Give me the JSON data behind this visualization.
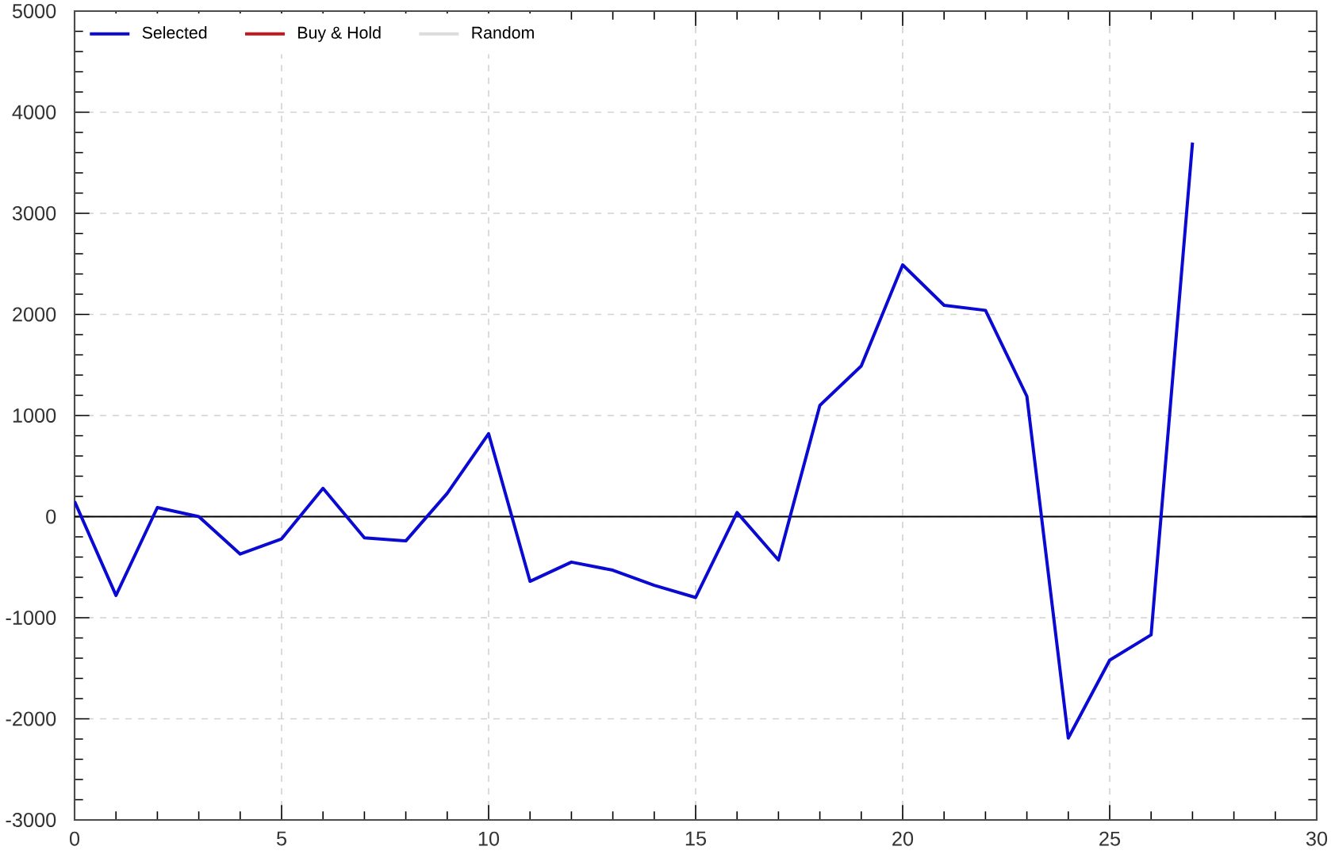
{
  "chart_data": {
    "type": "line",
    "x": [
      0,
      1,
      2,
      3,
      4,
      5,
      6,
      7,
      8,
      9,
      10,
      11,
      12,
      13,
      14,
      15,
      16,
      17,
      18,
      19,
      20,
      21,
      22,
      23,
      24,
      25,
      26,
      27
    ],
    "series": [
      {
        "name": "Selected",
        "color": "#0a0ad2",
        "values": [
          150,
          -780,
          90,
          0,
          -370,
          -220,
          280,
          -210,
          -240,
          230,
          820,
          -640,
          -450,
          -530,
          -680,
          -800,
          40,
          -430,
          1100,
          1490,
          2490,
          2090,
          2040,
          1190,
          -2190,
          -1420,
          -1170,
          3700
        ]
      },
      {
        "name": "Buy & Hold",
        "color": "#c0181e",
        "values": [
          null,
          null,
          null,
          null,
          null,
          null,
          null,
          null,
          null,
          null,
          null,
          null,
          null,
          null,
          null,
          null,
          null,
          null,
          null,
          null,
          null,
          null,
          null,
          null,
          null,
          null,
          null,
          null
        ]
      },
      {
        "name": "Random",
        "color": "#dcdcdc",
        "values": [
          null,
          null,
          null,
          null,
          null,
          null,
          null,
          null,
          null,
          null,
          null,
          null,
          null,
          null,
          null,
          null,
          null,
          null,
          null,
          null,
          null,
          null,
          null,
          null,
          null,
          null,
          null,
          null
        ]
      }
    ],
    "xlim": [
      0,
      30
    ],
    "ylim": [
      -3000,
      5000
    ],
    "xticks": [
      0,
      5,
      10,
      15,
      20,
      25,
      30
    ],
    "yticks": [
      -3000,
      -2000,
      -1000,
      0,
      1000,
      2000,
      3000,
      4000,
      5000
    ],
    "ref_lines": [
      {
        "axis": "y",
        "value": 0,
        "color": "#000000"
      }
    ],
    "grid": true,
    "legend": "top left"
  }
}
